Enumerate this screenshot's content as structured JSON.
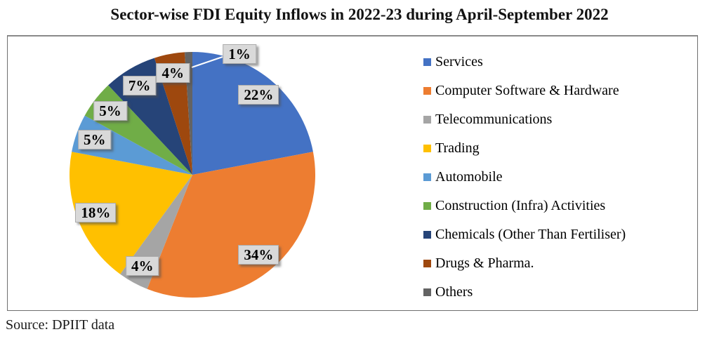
{
  "title": "Sector-wise FDI Equity Inflows in 2022-23 during April-September 2022",
  "source": "Source: DPIIT data",
  "chart_data": {
    "type": "pie",
    "title": "Sector-wise FDI Equity Inflows in 2022-23 during April-September 2022",
    "unit": "percent",
    "start_angle_deg": 0,
    "direction": "clockwise",
    "legend_position": "right",
    "label_box_fill": "#D9D9D9",
    "label_text_color": "#000000",
    "leader_line_color": "#FFFFFF",
    "slices": [
      {
        "label": "Services",
        "value": 22,
        "display": "22%",
        "color": "#4472C4"
      },
      {
        "label": "Computer Software & Hardware",
        "value": 34,
        "display": "34%",
        "color": "#ED7D31"
      },
      {
        "label": "Telecommunications",
        "value": 4,
        "display": "4%",
        "color": "#A5A5A5"
      },
      {
        "label": "Trading",
        "value": 18,
        "display": "18%",
        "color": "#FFC000"
      },
      {
        "label": "Automobile",
        "value": 5,
        "display": "5%",
        "color": "#5B9BD5"
      },
      {
        "label": "Construction (Infra) Activities",
        "value": 5,
        "display": "5%",
        "color": "#70AD47"
      },
      {
        "label": "Chemicals (Other Than Fertiliser)",
        "value": 7,
        "display": "7%",
        "color": "#264478"
      },
      {
        "label": "Drugs & Pharma.",
        "value": 4,
        "display": "4%",
        "color": "#9E480E"
      },
      {
        "label": "Others",
        "value": 1,
        "display": "1%",
        "color": "#636363"
      }
    ]
  }
}
